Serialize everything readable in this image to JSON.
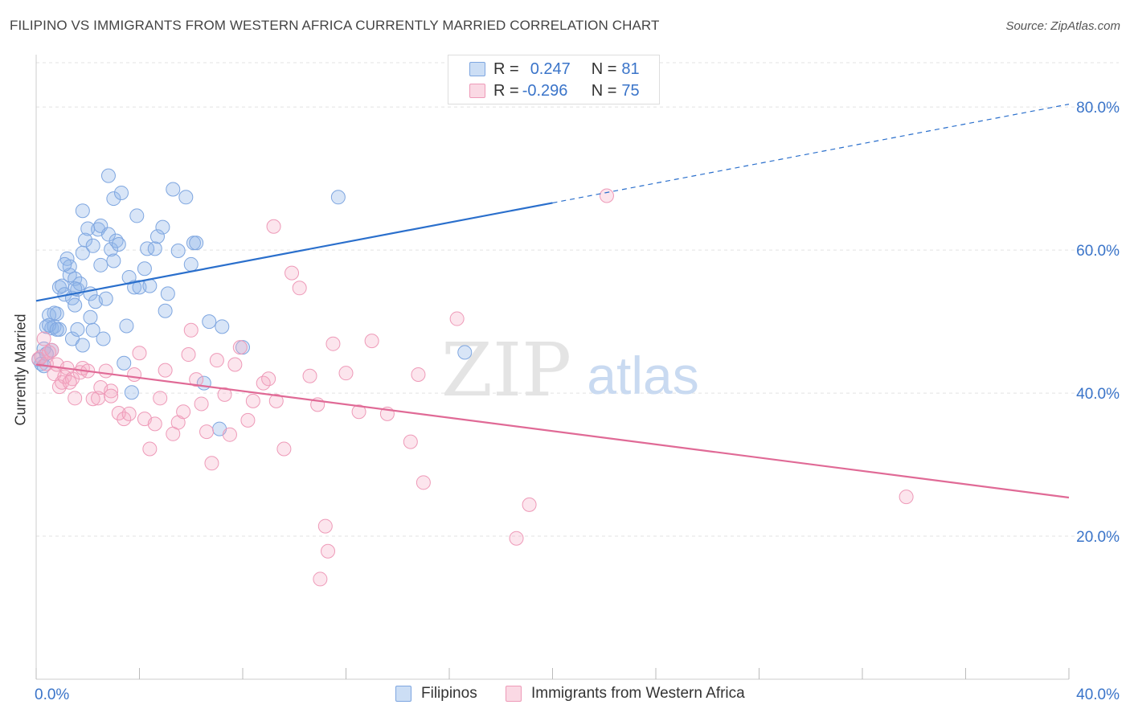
{
  "title": "FILIPINO VS IMMIGRANTS FROM WESTERN AFRICA CURRENTLY MARRIED CORRELATION CHART",
  "source": "Source: ZipAtlas.com",
  "watermark": {
    "zip": "ZIP",
    "atlas": "atlas"
  },
  "legend": {
    "rows": [
      {
        "r_label": "R = ",
        "r_value": "0.247",
        "n_label": "N = ",
        "n_value": "81"
      },
      {
        "r_label": "R = ",
        "r_value": "-0.296",
        "n_label": "N = ",
        "n_value": "75"
      }
    ]
  },
  "bottom_legend": [
    "Filipinos",
    "Immigrants from Western Africa"
  ],
  "chart_data": {
    "type": "scatter",
    "ylabel": "Currently Married",
    "xlim": [
      0,
      40
    ],
    "ylim": [
      0,
      88
    ],
    "x_tick_labels": [
      {
        "value": 0,
        "label": "0.0%"
      },
      {
        "value": 40,
        "label": "40.0%"
      }
    ],
    "y_tick_labels": [
      {
        "value": 20,
        "label": "20.0%"
      },
      {
        "value": 40,
        "label": "40.0%"
      },
      {
        "value": 60,
        "label": "60.0%"
      },
      {
        "value": 80,
        "label": "80.0%"
      }
    ],
    "x_minor_ticks": [
      0,
      4,
      8,
      12,
      16,
      20,
      24,
      28,
      32,
      36,
      40
    ],
    "grid": true,
    "legend_position": "top-center",
    "colors": {
      "filipinos_fill": "rgba(143,181,232,0.35)",
      "filipinos_stroke": "#7ea6e0",
      "filipinos_line": "#2a6fcc",
      "wafrica_fill": "rgba(244,170,196,0.30)",
      "wafrica_stroke": "#ee9ab8",
      "wafrica_line": "#e06a96",
      "tick_label": "#3a74c9"
    },
    "series": [
      {
        "name": "Filipinos",
        "trend": {
          "x": [
            0,
            20
          ],
          "y": [
            52.9,
            66.6
          ],
          "dashed_to": {
            "x": 40,
            "y": 80.4
          }
        },
        "x": [
          0.1,
          0.2,
          0.3,
          0.3,
          0.4,
          0.5,
          0.6,
          0.6,
          0.7,
          0.8,
          0.9,
          0.9,
          1.0,
          1.1,
          1.2,
          1.3,
          1.3,
          1.4,
          1.4,
          1.5,
          1.5,
          1.6,
          1.6,
          1.7,
          1.8,
          1.8,
          1.9,
          2.0,
          2.1,
          2.1,
          2.2,
          2.3,
          2.4,
          2.5,
          2.5,
          2.6,
          2.7,
          2.8,
          2.8,
          2.9,
          3.0,
          3.0,
          3.1,
          3.2,
          3.3,
          3.4,
          3.5,
          3.6,
          3.7,
          3.8,
          3.9,
          4.0,
          4.2,
          4.3,
          4.4,
          4.6,
          4.7,
          4.9,
          5.0,
          5.1,
          5.3,
          5.5,
          5.8,
          6.0,
          6.1,
          6.2,
          6.5,
          6.7,
          7.1,
          7.2,
          8.0,
          1.1,
          0.7,
          0.4,
          11.7,
          16.6,
          0.5,
          0.8,
          2.2,
          1.5,
          1.8
        ],
        "y": [
          44.7,
          44.1,
          43.8,
          46.2,
          49.3,
          50.9,
          49.1,
          46.0,
          49.3,
          51.1,
          48.9,
          54.8,
          55.0,
          53.8,
          58.8,
          56.5,
          57.7,
          53.3,
          47.6,
          52.3,
          56.0,
          54.5,
          48.9,
          55.3,
          59.6,
          65.5,
          61.4,
          63.0,
          53.9,
          50.6,
          48.8,
          52.8,
          62.9,
          63.4,
          57.9,
          47.6,
          53.2,
          70.4,
          62.2,
          60.1,
          67.2,
          58.5,
          61.3,
          60.8,
          68.0,
          44.2,
          49.4,
          56.2,
          40.1,
          54.8,
          64.8,
          54.8,
          57.4,
          60.2,
          55.0,
          60.2,
          61.9,
          63.2,
          51.5,
          53.9,
          68.5,
          59.9,
          67.4,
          58.0,
          61.0,
          61.0,
          41.4,
          50.0,
          35.0,
          49.3,
          46.4,
          58.0,
          51.2,
          45.5,
          67.4,
          45.7,
          49.5,
          48.9,
          60.6,
          54.6,
          46.7
        ]
      },
      {
        "name": "Immigrants from Western Africa",
        "trend": {
          "x": [
            0,
            40
          ],
          "y": [
            44.0,
            25.4
          ]
        },
        "x": [
          0.1,
          0.2,
          0.3,
          0.4,
          0.5,
          0.6,
          0.7,
          0.8,
          0.9,
          1.0,
          1.1,
          1.2,
          1.4,
          1.5,
          1.7,
          1.8,
          2.0,
          2.2,
          2.4,
          2.5,
          2.7,
          2.9,
          3.2,
          3.4,
          3.6,
          3.8,
          4.0,
          4.2,
          4.4,
          4.6,
          4.8,
          5.0,
          5.3,
          5.5,
          5.7,
          5.9,
          6.0,
          6.2,
          6.4,
          6.6,
          6.8,
          7.0,
          7.3,
          7.5,
          7.7,
          7.9,
          8.2,
          8.4,
          8.8,
          9.0,
          9.3,
          9.6,
          9.9,
          10.2,
          10.6,
          10.9,
          11.2,
          11.5,
          12.0,
          12.5,
          13.0,
          13.6,
          14.5,
          15.0,
          16.3,
          18.6,
          19.1,
          22.1,
          33.7,
          11.3,
          11.0,
          2.9,
          9.2,
          14.8,
          1.3
        ],
        "y": [
          44.8,
          45.1,
          47.6,
          44.1,
          45.7,
          46.0,
          42.7,
          44.0,
          40.9,
          41.5,
          42.3,
          43.5,
          42.0,
          39.3,
          42.9,
          43.5,
          43.1,
          39.2,
          39.3,
          40.8,
          43.1,
          40.3,
          37.2,
          36.4,
          37.1,
          42.6,
          45.6,
          36.4,
          32.2,
          35.7,
          39.3,
          43.2,
          34.3,
          35.9,
          37.4,
          45.4,
          48.8,
          41.9,
          38.5,
          34.6,
          30.2,
          44.6,
          39.8,
          34.2,
          44.0,
          46.4,
          36.2,
          38.9,
          41.4,
          42.0,
          38.9,
          32.2,
          56.8,
          54.7,
          42.4,
          38.4,
          21.4,
          46.9,
          42.8,
          37.4,
          47.3,
          37.1,
          33.2,
          27.5,
          50.4,
          19.7,
          24.4,
          67.6,
          25.5,
          17.9,
          14.0,
          39.6,
          63.3,
          42.6,
          41.5
        ]
      }
    ]
  }
}
